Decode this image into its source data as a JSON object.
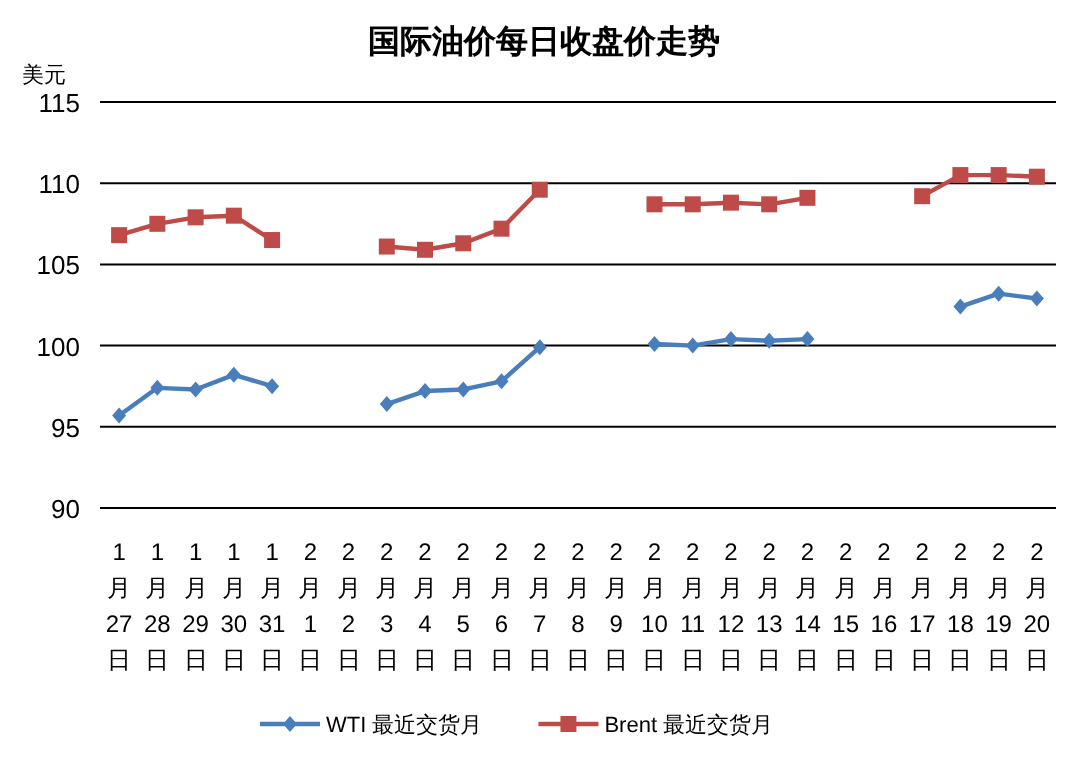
{
  "chart_data": {
    "type": "line",
    "title": "国际油价每日收盘价走势",
    "ylabel": "美元",
    "categories": [
      "1月27日",
      "1月28日",
      "1月29日",
      "1月30日",
      "1月31日",
      "2月1日",
      "2月2日",
      "2月3日",
      "2月4日",
      "2月5日",
      "2月6日",
      "2月7日",
      "2月8日",
      "2月9日",
      "2月10日",
      "2月11日",
      "2月12日",
      "2月13日",
      "2月14日",
      "2月15日",
      "2月16日",
      "2月17日",
      "2月18日",
      "2月19日",
      "2月20日"
    ],
    "series": [
      {
        "name": "WTI 最近交货月",
        "color": "#4a7ebb",
        "marker": "diamond",
        "values": [
          95.7,
          97.4,
          97.3,
          98.2,
          97.5,
          null,
          null,
          96.4,
          97.2,
          97.3,
          97.8,
          99.9,
          null,
          null,
          100.1,
          100.0,
          100.4,
          100.3,
          100.4,
          null,
          null,
          null,
          102.4,
          103.2,
          102.9
        ]
      },
      {
        "name": "Brent 最近交货月",
        "color": "#be4b48",
        "marker": "square",
        "values": [
          106.8,
          107.5,
          107.9,
          108.0,
          106.5,
          null,
          null,
          106.1,
          105.9,
          106.3,
          107.2,
          109.6,
          null,
          null,
          108.7,
          108.7,
          108.8,
          108.7,
          109.1,
          null,
          null,
          109.2,
          110.5,
          110.5,
          110.4
        ]
      }
    ],
    "ylim": [
      90,
      115
    ],
    "yticks": [
      90,
      95,
      100,
      105,
      110,
      115
    ],
    "grid": "y",
    "legend": "bottom"
  }
}
